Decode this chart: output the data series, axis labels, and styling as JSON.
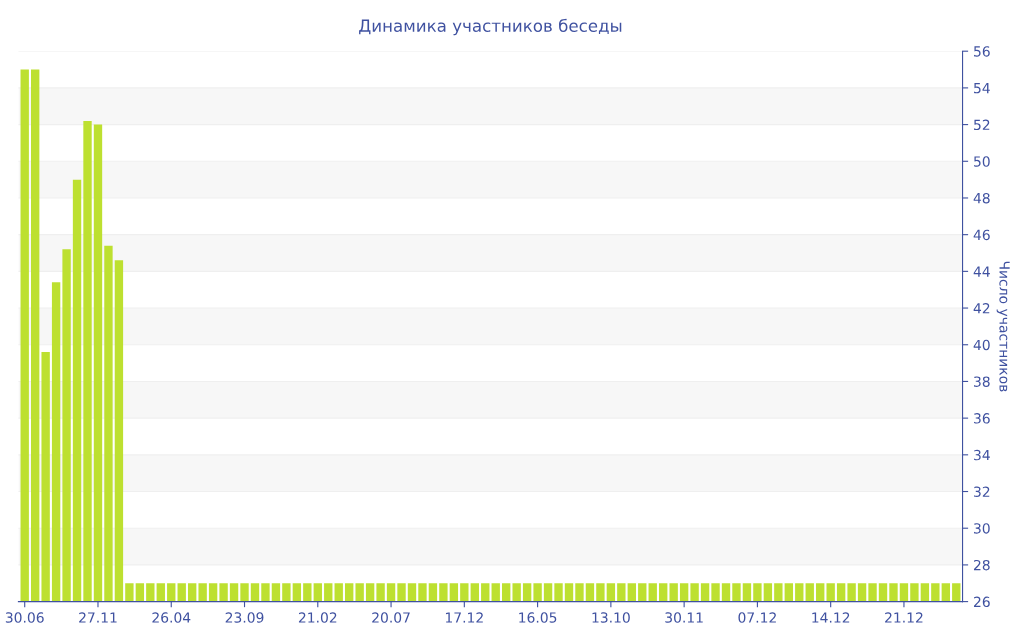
{
  "chart_data": {
    "type": "bar",
    "title": "Динамика участников беседы",
    "ylabel": "Число участников",
    "categories": [
      "30.06",
      null,
      null,
      null,
      null,
      null,
      null,
      "27.11",
      null,
      null,
      null,
      null,
      null,
      null,
      "26.04",
      null,
      null,
      null,
      null,
      null,
      null,
      "23.09",
      null,
      null,
      null,
      null,
      null,
      null,
      "21.02",
      null,
      null,
      null,
      null,
      null,
      null,
      "20.07",
      null,
      null,
      null,
      null,
      null,
      null,
      "17.12",
      null,
      null,
      null,
      null,
      null,
      null,
      "16.05",
      null,
      null,
      null,
      null,
      null,
      null,
      "13.10",
      null,
      null,
      null,
      null,
      null,
      null,
      "30.11",
      null,
      null,
      null,
      null,
      null,
      null,
      "07.12",
      null,
      null,
      null,
      null,
      null,
      null,
      "14.12",
      null,
      null,
      null,
      null,
      null,
      null,
      "21.12",
      null,
      null,
      null,
      null,
      null
    ],
    "values": [
      55,
      55,
      39.6,
      43.4,
      45.2,
      49,
      52.2,
      52,
      45.4,
      44.6,
      27,
      27,
      27,
      27,
      27,
      27,
      27,
      27,
      27,
      27,
      27,
      27,
      27,
      27,
      27,
      27,
      27,
      27,
      27,
      27,
      27,
      27,
      27,
      27,
      27,
      27,
      27,
      27,
      27,
      27,
      27,
      27,
      27,
      27,
      27,
      27,
      27,
      27,
      27,
      27,
      27,
      27,
      27,
      27,
      27,
      27,
      27,
      27,
      27,
      27,
      27,
      27,
      27,
      27,
      27,
      27,
      27,
      27,
      27,
      27,
      27,
      27,
      27,
      27,
      27,
      27,
      27,
      27,
      27,
      27,
      27,
      27,
      27,
      27,
      27,
      27,
      27,
      27,
      27,
      27
    ],
    "color": "#bde030",
    "ylim": [
      26,
      56
    ],
    "yticks": [
      26,
      28,
      30,
      32,
      34,
      36,
      38,
      40,
      42,
      44,
      46,
      48,
      50,
      52,
      54,
      56
    ],
    "grid": "y"
  }
}
